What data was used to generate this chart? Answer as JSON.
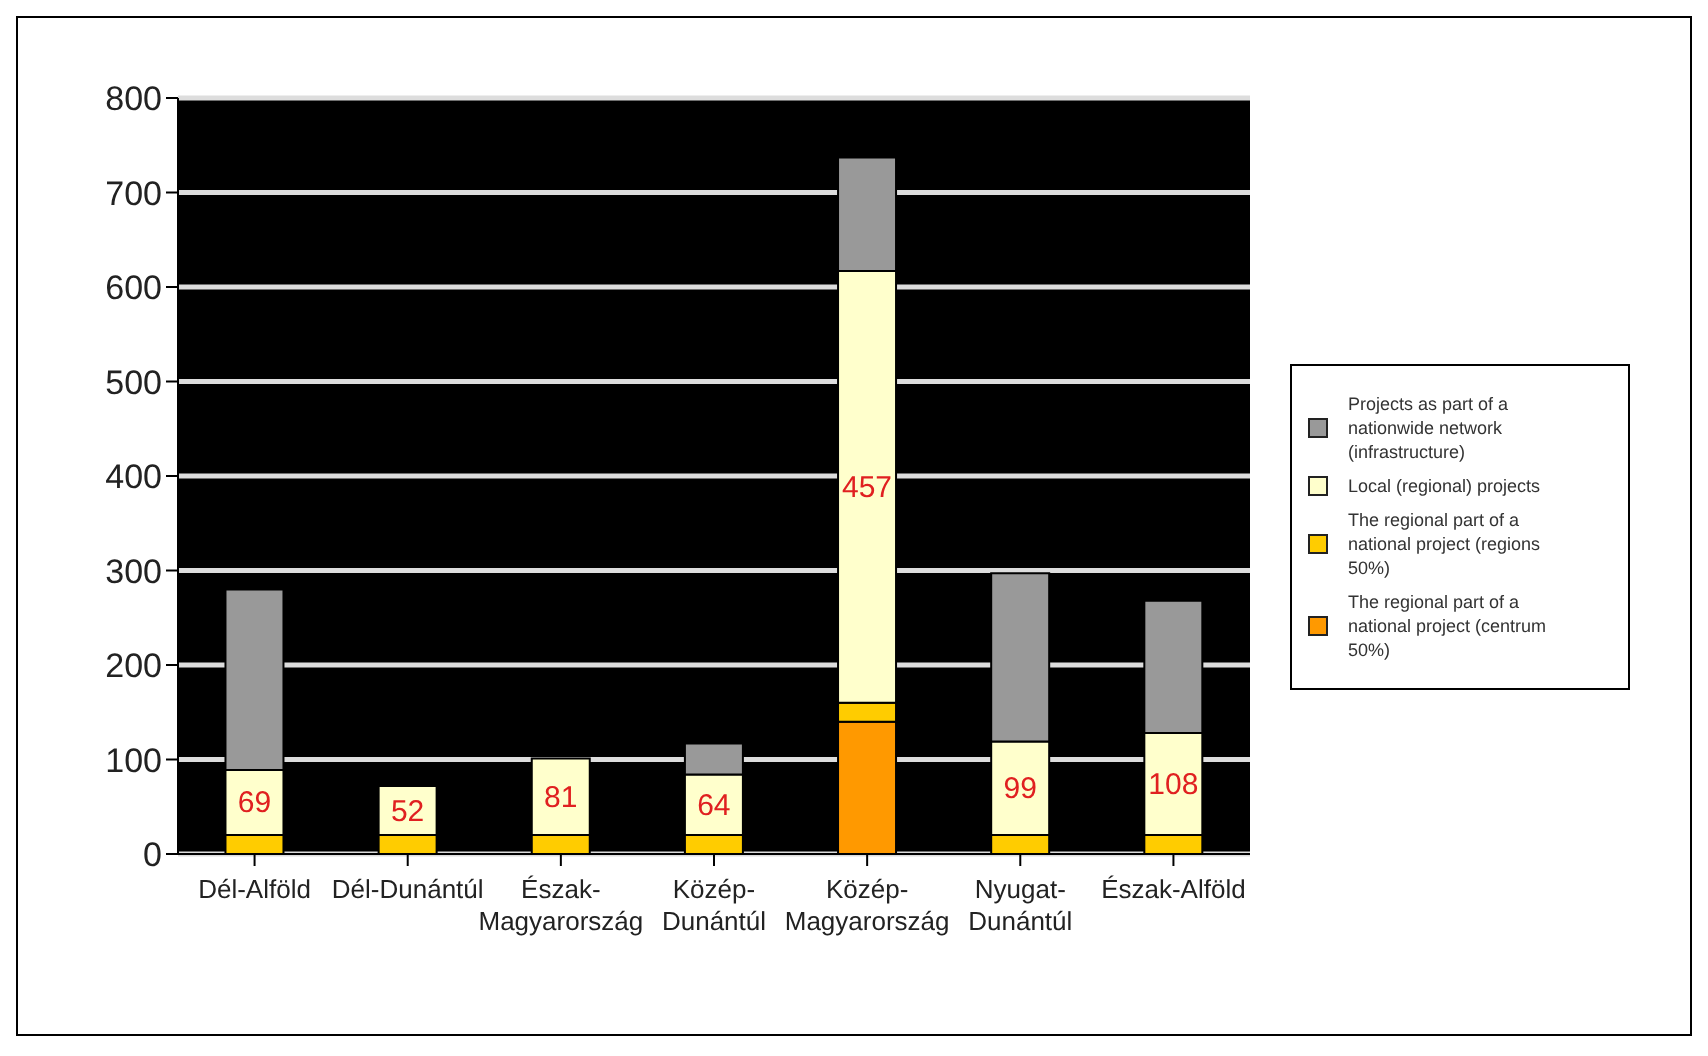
{
  "chart_data": {
    "type": "bar",
    "stacked": true,
    "categories": [
      "Dél-Alföld",
      "Dél-Dunántúl",
      "Észak-Magyarország",
      "Közép-Dunántúl",
      "Közép-Magyarország",
      "Nyugat-Dunántúl",
      "Észak-Alföld"
    ],
    "series": [
      {
        "name": "The regional part of a national project (centrum 50%)",
        "color": "#ff9900",
        "values": [
          null,
          null,
          null,
          null,
          140,
          null,
          null
        ]
      },
      {
        "name": "The regional part of a national project (regions 50%)",
        "color": "#ffcc00",
        "values": [
          20,
          20,
          20,
          20,
          20,
          20,
          20
        ]
      },
      {
        "name": "Local (regional) projects",
        "color": "#ffffcc",
        "values": [
          69,
          52,
          81,
          64,
          457,
          99,
          108
        ],
        "value_labels": [
          "69",
          "52",
          "81",
          "64",
          "457",
          "99",
          "108"
        ]
      },
      {
        "name": "Projects as part of a nationwide network (infrastructure)",
        "color": "#999999",
        "values": [
          191,
          null,
          null,
          33,
          120,
          178,
          140
        ]
      }
    ],
    "ylim": [
      0,
      800
    ],
    "yticks": [
      0,
      100,
      200,
      300,
      400,
      500,
      600,
      700,
      800
    ],
    "grid": "y",
    "legend": "right"
  }
}
